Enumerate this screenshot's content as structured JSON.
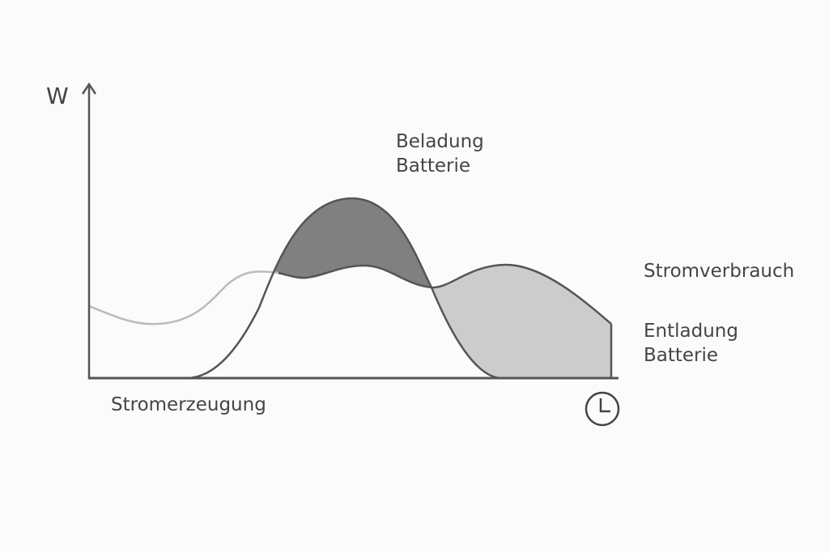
{
  "axis": {
    "y_label": "W",
    "x_icon": "clock-icon"
  },
  "labels": {
    "charging": [
      "Beladung",
      "Batterie"
    ],
    "consumption": "Stromverbrauch",
    "discharging": [
      "Entladung",
      "Batterie"
    ],
    "generation": "Stromerzeugung"
  },
  "colors": {
    "line": "#555555",
    "charging_fill": "#808080",
    "discharging_fill": "#cccccc",
    "consumption_early": "#bbbbbb"
  }
}
